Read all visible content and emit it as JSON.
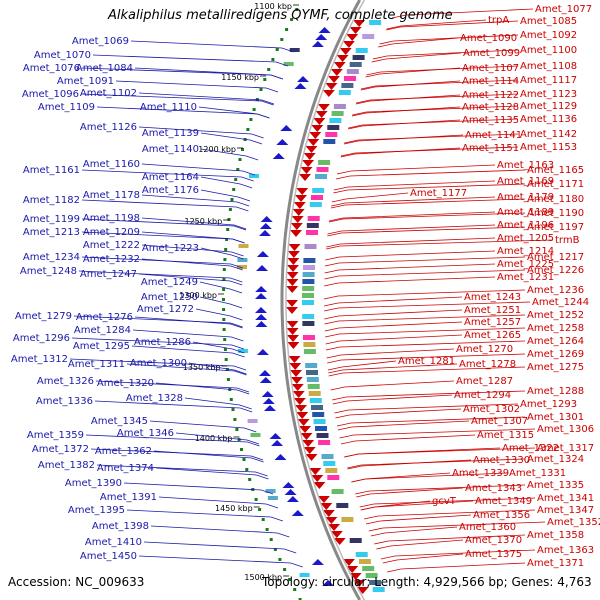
{
  "title": "Alkaliphilus metalliredigens QYMF, complete genome",
  "accession": "Accession: NC_009633",
  "topology": "Topology: circular; Length: 4,929,566 bp; Genes: 4,763",
  "colors": {
    "left_labels": "#1a1aaa",
    "right_labels": "#cc0000",
    "ruler_tick": "#1a7a1a",
    "backbone": "#888888",
    "forward_genes": "#cc0000",
    "reverse_genes": "#1a1acc"
  },
  "kbp_markers": [
    "1100 kbp",
    "1150 kbp",
    "1200 kbp",
    "1250 kbp",
    "1300 kbp",
    "1350 kbp",
    "1400 kbp",
    "1450 kbp",
    "1500 kbp"
  ],
  "left_labels": [
    "Amet_1069",
    "Amet_1070",
    "Amet_1076",
    "Amet_1084",
    "Amet_1091",
    "Amet_1096",
    "Amet_1102",
    "Amet_1109",
    "Amet_1110",
    "Amet_1126",
    "Amet_1139",
    "Amet_1140",
    "Amet_1160",
    "Amet_1161",
    "Amet_1164",
    "Amet_1176",
    "Amet_1182",
    "Amet_1178",
    "Amet_1198",
    "Amet_1199",
    "Amet_1213",
    "Amet_1209",
    "Amet_1222",
    "Amet_1223",
    "Amet_1234",
    "Amet_1232",
    "Amet_1248",
    "Amet_1247",
    "Amet_1249",
    "Amet_1250",
    "Amet_1272",
    "Amet_1279",
    "Amet_1276",
    "Amet_1284",
    "Amet_1296",
    "Amet_1286",
    "Amet_1295",
    "Amet_1312",
    "Amet_1311",
    "Amet_1300",
    "Amet_1326",
    "Amet_1320",
    "Amet_1336",
    "Amet_1328",
    "Amet_1345",
    "Amet_1359",
    "Amet_1346",
    "Amet_1372",
    "Amet_1362",
    "Amet_1382",
    "Amet_1374",
    "Amet_1390",
    "Amet_1391",
    "Amet_1395",
    "Amet_1398",
    "Amet_1410",
    "Amet_1450"
  ],
  "right_labels": [
    "Amet_1077",
    "trpA",
    "Amet_1085",
    "Amet_1090",
    "Amet_1092",
    "Amet_1099",
    "Amet_1100",
    "Amet_1107",
    "Amet_1108",
    "Amet_1114",
    "Amet_1117",
    "Amet_1122",
    "Amet_1123",
    "Amet_1128",
    "Amet_1129",
    "Amet_1135",
    "Amet_1136",
    "Amet_1141",
    "Amet_1142",
    "Amet_1151",
    "Amet_1153",
    "Amet_1163",
    "Amet_1165",
    "Amet_1169",
    "Amet_1171",
    "Amet_1177",
    "Amet_1179",
    "Amet_1180",
    "Amet_1189",
    "Amet_1190",
    "Amet_1196",
    "Amet_1197",
    "Amet_1205",
    "trmB",
    "Amet_1214",
    "Amet_1217",
    "Amet_1225",
    "Amet_1226",
    "Amet_1231",
    "Amet_1236",
    "Amet_1243",
    "Amet_1244",
    "Amet_1251",
    "Amet_1252",
    "Amet_1257",
    "Amet_1258",
    "Amet_1265",
    "Amet_1264",
    "Amet_1270",
    "Amet_1269",
    "Amet_1281",
    "Amet_1278",
    "Amet_1275",
    "Amet_1287",
    "Amet_1288",
    "Amet_1294",
    "Amet_1293",
    "Amet_1302",
    "Amet_1301",
    "Amet_1307",
    "Amet_1306",
    "Amet_1315",
    "Amet_1322",
    "Amet_1317",
    "Amet_1330",
    "Amet_1324",
    "Amet_1339",
    "Amet_1331",
    "Amet_1335",
    "Amet_1343",
    "Amet_1341",
    "gcvT",
    "Amet_1349",
    "Amet_1347",
    "Amet_1356",
    "Amet_1352",
    "Amet_1360",
    "Amet_1358",
    "Amet_1370",
    "Amet_1363",
    "Amet_1375",
    "Amet_1371"
  ]
}
